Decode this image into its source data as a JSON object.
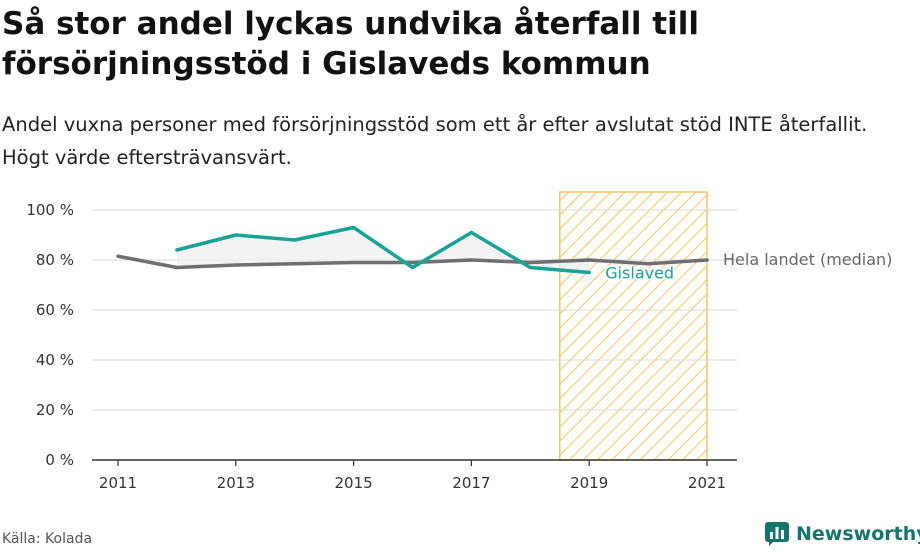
{
  "header": {
    "title": "Så stor andel lyckas undvika återfall till försörjningsstöd i Gislaveds kommun",
    "subtitle": "Andel vuxna personer med försörjningsstöd som ett år efter avslutat stöd INTE återfallit. Högt värde eftersträvansvärt."
  },
  "footer": {
    "source": "Källa: Kolada",
    "brand": "Newsworthy"
  },
  "chart_data": {
    "type": "line",
    "title": "Så stor andel lyckas undvika återfall till försörjningsstöd i Gislaveds kommun",
    "subtitle": "Andel vuxna personer med försörjningsstöd som ett år efter avslutat stöd INTE återfallit. Högt värde eftersträvansvärt.",
    "xlabel": "",
    "ylabel": "",
    "xlim": [
      2011,
      2021
    ],
    "ylim": [
      0,
      100
    ],
    "x_ticks": [
      2011,
      2013,
      2015,
      2017,
      2019,
      2021
    ],
    "x_tick_labels": [
      "2011",
      "2013",
      "2015",
      "2017",
      "2019",
      "2021"
    ],
    "y_ticks": [
      0,
      20,
      40,
      60,
      80,
      100
    ],
    "y_tick_labels": [
      "0 %",
      "20 %",
      "40 %",
      "60 %",
      "80 %",
      "100 %"
    ],
    "grid": true,
    "legend": "direct labels at line ends",
    "highlight_range": [
      2018.5,
      2021
    ],
    "series": [
      {
        "name": "Hela landet (median)",
        "color": "#6e6e73",
        "x": [
          2011,
          2012,
          2013,
          2014,
          2015,
          2016,
          2017,
          2018,
          2019,
          2020,
          2021
        ],
        "values": [
          81.5,
          77,
          78,
          78.5,
          79,
          79,
          80,
          79,
          80,
          78.5,
          80
        ]
      },
      {
        "name": "Gislaved",
        "color": "#17a395",
        "x": [
          2012,
          2013,
          2014,
          2015,
          2016,
          2017,
          2018,
          2019
        ],
        "values": [
          84,
          90,
          88,
          93,
          77,
          91,
          77,
          75
        ]
      }
    ]
  }
}
